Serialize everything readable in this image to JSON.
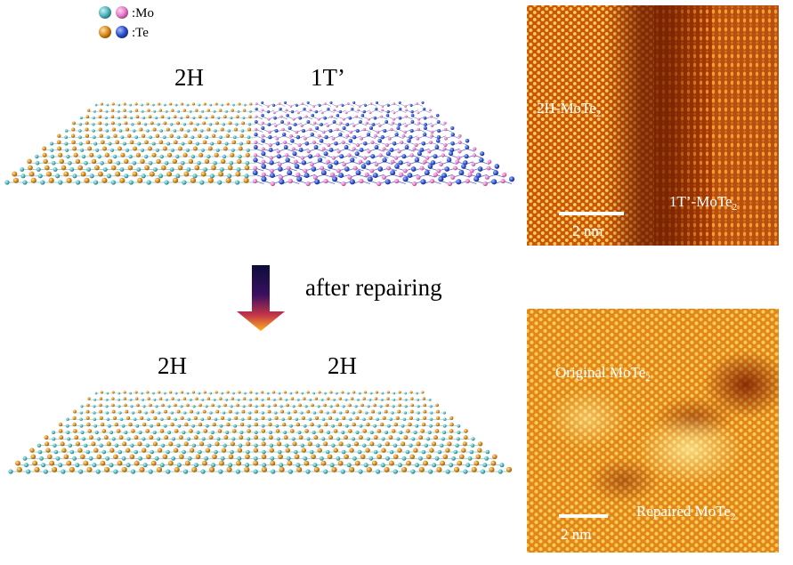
{
  "legend": {
    "mo_label": ":Mo",
    "te_label": ":Te"
  },
  "top_panel": {
    "left_phase": "2H",
    "right_phase": "1T’"
  },
  "arrow": {
    "label": "after repairing"
  },
  "bottom_panel": {
    "left_phase": "2H",
    "right_phase": "2H"
  },
  "stm_top": {
    "label_2h": "2H-MoTe",
    "label_2h_sub": "2",
    "label_1t": "1T’-MoTe",
    "label_1t_sub": "2",
    "scale": "2 nm"
  },
  "stm_bottom": {
    "label_original": "Original MoTe",
    "label_original_sub": "2",
    "label_repaired": "Repaired MoTe",
    "label_repaired_sub": "2",
    "scale": "2 nm"
  },
  "colors": {
    "mo_2h": "#4db4bc",
    "te_2h": "#d98816",
    "mo_1t": "#e87ac8",
    "te_1t": "#2d4fc8",
    "stm_dark": "#8a2a00",
    "stm_bright": "#ffd34a"
  }
}
